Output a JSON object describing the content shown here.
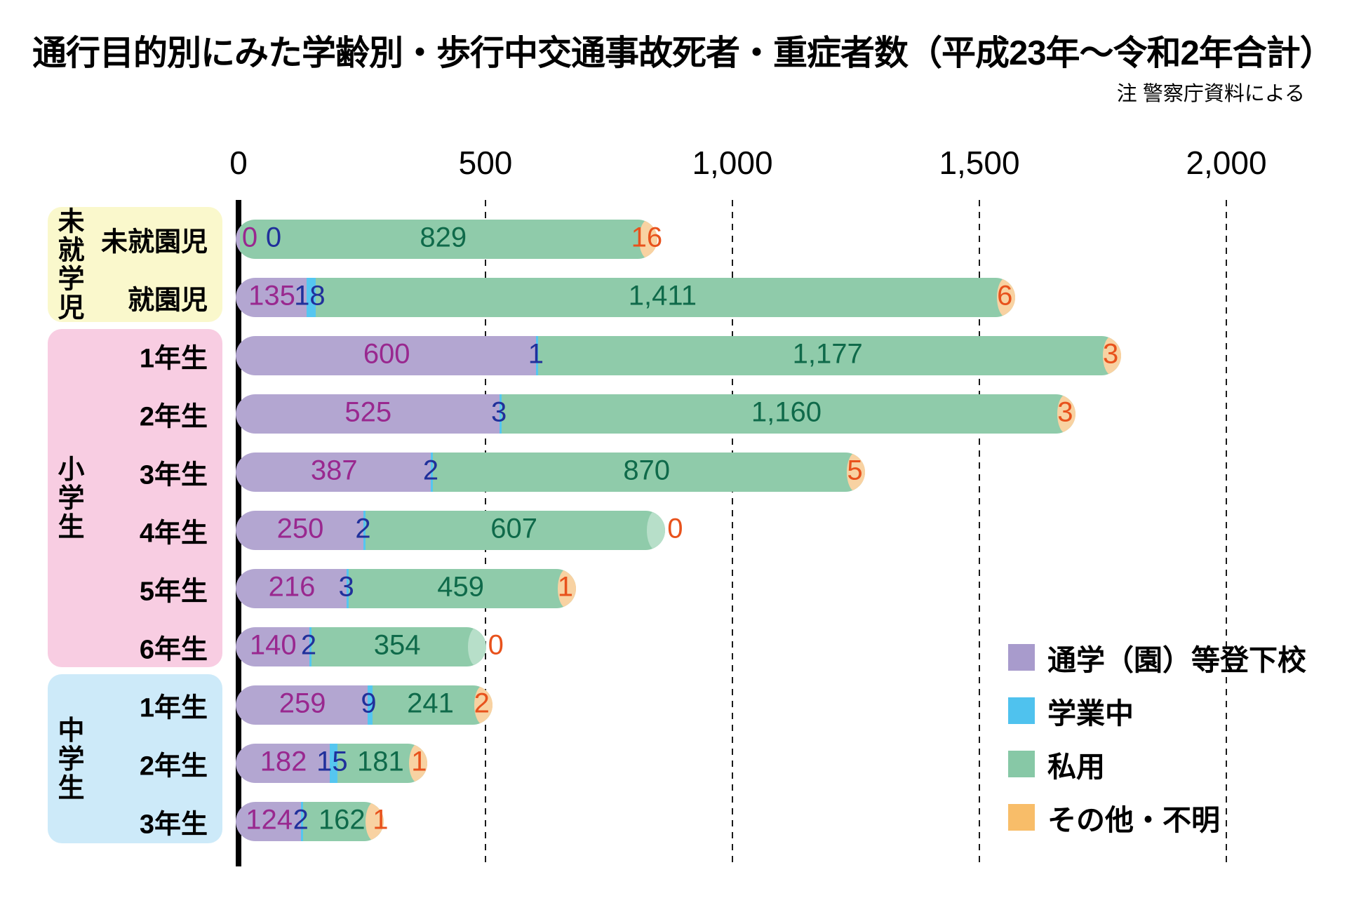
{
  "title": "通行目的別にみた学齢別・歩行中交通事故死者・重症者数（平成23年～令和2年合計）",
  "note": "注 警察庁資料による",
  "chart_data": {
    "type": "bar",
    "orientation": "horizontal",
    "stacked": true,
    "title": "通行目的別にみた学齢別・歩行中交通事故死者・重症者数（平成23年～令和2年合計）",
    "note": "注 警察庁資料による",
    "xlim": [
      0,
      2000
    ],
    "x_ticks": [
      0,
      500,
      1000,
      1500,
      2000
    ],
    "x_tick_labels": [
      "0",
      "500",
      "1,000",
      "1,500",
      "2,000"
    ],
    "grid": "vertical-dashed",
    "legend_position": "bottom-right",
    "series_names": [
      "通学（園）等登下校",
      "学業中",
      "私用",
      "その他・不明"
    ],
    "legend": [
      {
        "label": "通学（園）等登下校",
        "color": "#A89BCC"
      },
      {
        "label": "学業中",
        "color": "#4FC2EE"
      },
      {
        "label": "私用",
        "color": "#87C8A6"
      },
      {
        "label": "その他・不明",
        "color": "#F8BD69"
      }
    ],
    "bar_colors": {
      "commute": "#B3A6D1",
      "school": "#55C6F0",
      "private": "#8FCBAA",
      "other": "#F5B96A",
      "cap_other": "#F8D2A2",
      "cap_private": "#B7DFC9"
    },
    "value_label_colors": {
      "commute": "#99288F",
      "school": "#20309B",
      "private": "#0F6A4A",
      "other": "#E8521C"
    },
    "groups": [
      {
        "label": "未就学児",
        "bg": "#FAF8CC",
        "first_row": 0,
        "last_row": 1
      },
      {
        "label": "小学生",
        "bg": "#F8CDE2",
        "first_row": 2,
        "last_row": 7
      },
      {
        "label": "中学生",
        "bg": "#CDEAF9",
        "first_row": 8,
        "last_row": 10
      }
    ],
    "categories": [
      "未就園児",
      "就園児",
      "1年生",
      "2年生",
      "3年生",
      "4年生",
      "5年生",
      "6年生",
      "1年生",
      "2年生",
      "3年生"
    ],
    "rows": [
      {
        "label": "未就園児",
        "group": 0,
        "values": [
          0,
          0,
          829,
          16
        ]
      },
      {
        "label": "就園児",
        "group": 0,
        "values": [
          135,
          18,
          1411,
          6
        ]
      },
      {
        "label": "1年生",
        "group": 1,
        "values": [
          600,
          1,
          1177,
          3
        ]
      },
      {
        "label": "2年生",
        "group": 1,
        "values": [
          525,
          3,
          1160,
          3
        ]
      },
      {
        "label": "3年生",
        "group": 1,
        "values": [
          387,
          2,
          870,
          5
        ]
      },
      {
        "label": "4年生",
        "group": 1,
        "values": [
          250,
          2,
          607,
          0
        ]
      },
      {
        "label": "5年生",
        "group": 1,
        "values": [
          216,
          3,
          459,
          1
        ]
      },
      {
        "label": "6年生",
        "group": 1,
        "values": [
          140,
          2,
          354,
          0
        ]
      },
      {
        "label": "1年生",
        "group": 2,
        "values": [
          259,
          9,
          241,
          2
        ]
      },
      {
        "label": "2年生",
        "group": 2,
        "values": [
          182,
          15,
          181,
          1
        ]
      },
      {
        "label": "3年生",
        "group": 2,
        "values": [
          124,
          2,
          162,
          1
        ]
      }
    ]
  }
}
